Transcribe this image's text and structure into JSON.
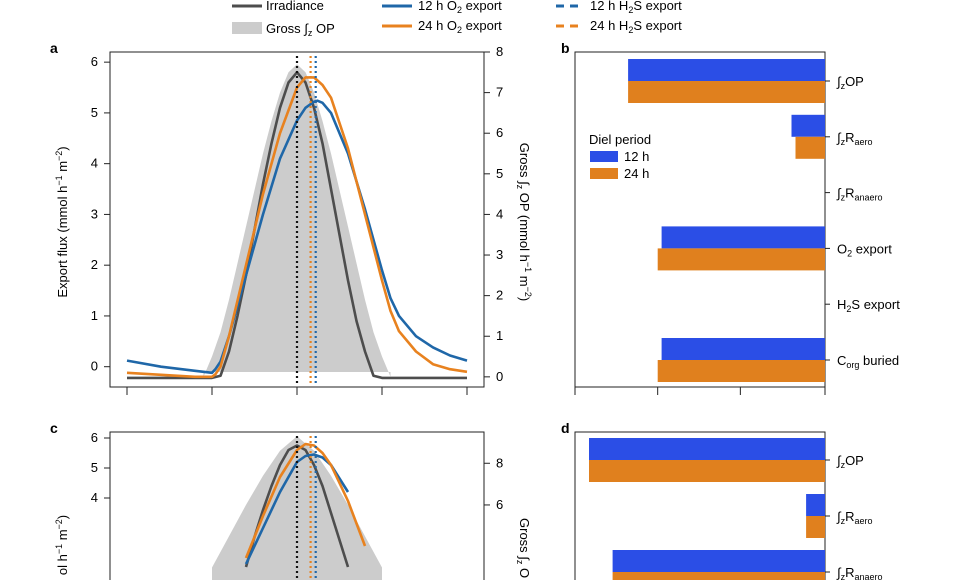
{
  "legend": {
    "irradiance": "Irradiance",
    "gross_op": [
      "Gross ",
      "∫",
      "z",
      " OP"
    ],
    "o2_12": [
      "12 h O",
      "2",
      " export"
    ],
    "o2_24": [
      "24 h O",
      "2",
      " export"
    ],
    "h2s_12": [
      "12 h H",
      "2",
      "S export"
    ],
    "h2s_24": [
      "24 h H",
      "2",
      "S export"
    ]
  },
  "colors": {
    "c12": "#1f67a8",
    "c24": "#e8821f",
    "irradiance": "#4d4d4d",
    "gross_fill": "#cccccc",
    "bar12": "#2b4ee6",
    "bar24": "#e0801e"
  },
  "chart_data": [
    {
      "panel": "a",
      "type": "line",
      "ylabel_left": [
        "Export flux (mmol h",
        "−1",
        " m",
        "−2",
        ")"
      ],
      "ylabel_right": [
        "Gross ",
        "∫",
        "z",
        " OP (mmol h",
        "−1",
        " m",
        "−2",
        ")"
      ],
      "ylim_left": [
        -0.4,
        6.2
      ],
      "yticks_left": [
        0,
        1,
        2,
        3,
        4,
        5,
        6
      ],
      "ylim_right": [
        -0.25,
        8.0
      ],
      "yticks_right": [
        0,
        1,
        2,
        3,
        4,
        5,
        6,
        7,
        8
      ],
      "xlim": [
        -11,
        11
      ],
      "xticks": [
        -10,
        -5,
        0,
        5,
        10
      ],
      "xtick_labels": "not visible",
      "series": [
        {
          "key": "irradiance",
          "x": [
            -10,
            -6,
            -5,
            -4.5,
            -4,
            -3.5,
            -3,
            -2.5,
            -2,
            -1.5,
            -1,
            -0.5,
            0,
            0.5,
            1,
            1.5,
            2,
            2.5,
            3,
            3.5,
            4,
            4.5,
            5,
            6,
            10
          ],
          "y": [
            -0.22,
            -0.22,
            -0.22,
            -0.18,
            0.3,
            1.0,
            1.8,
            2.7,
            3.6,
            4.4,
            5.1,
            5.6,
            5.8,
            5.6,
            5.1,
            4.4,
            3.5,
            2.6,
            1.7,
            0.9,
            0.3,
            -0.18,
            -0.22,
            -0.22,
            -0.22
          ]
        },
        {
          "key": "o2_12",
          "x": [
            -10,
            -8,
            -6,
            -5,
            -4.8,
            -4.5,
            -4,
            -3,
            -2,
            -1,
            0,
            0.5,
            1,
            1.2,
            1.5,
            2,
            3,
            4,
            5,
            5.5,
            6,
            7,
            8,
            9,
            10
          ],
          "y": [
            0.12,
            0.0,
            -0.08,
            -0.12,
            -0.05,
            0.1,
            0.6,
            1.8,
            3.0,
            4.1,
            4.85,
            5.1,
            5.22,
            5.24,
            5.2,
            5.0,
            4.2,
            3.1,
            1.9,
            1.35,
            1.0,
            0.6,
            0.38,
            0.22,
            0.12
          ]
        },
        {
          "key": "o2_24",
          "x": [
            -10,
            -8,
            -6,
            -5,
            -4.8,
            -4.5,
            -4,
            -3,
            -2,
            -1,
            0,
            0.5,
            1,
            1.5,
            2,
            3,
            4,
            5,
            5.5,
            6,
            7,
            8,
            9,
            10
          ],
          "y": [
            -0.12,
            -0.16,
            -0.2,
            -0.2,
            -0.15,
            0.0,
            0.6,
            2.0,
            3.4,
            4.6,
            5.5,
            5.7,
            5.7,
            5.55,
            5.3,
            4.3,
            3.0,
            1.7,
            1.1,
            0.7,
            0.3,
            0.05,
            -0.05,
            -0.1
          ]
        },
        {
          "key": "gross_op",
          "axis": "right",
          "x": [
            -5.5,
            -5,
            -4.5,
            -4,
            -3.5,
            -3,
            -2.5,
            -2,
            -1.5,
            -1,
            -0.5,
            0,
            0.5,
            1,
            1.5,
            2,
            2.5,
            3,
            3.5,
            4,
            4.5,
            5,
            5.5
          ],
          "y": [
            0,
            0.5,
            1.1,
            1.9,
            2.8,
            3.7,
            4.6,
            5.5,
            6.3,
            7.0,
            7.5,
            7.7,
            7.5,
            7.0,
            6.3,
            5.5,
            4.6,
            3.7,
            2.8,
            1.9,
            1.1,
            0.5,
            0
          ]
        }
      ],
      "vlines": [
        {
          "key": "irradiance",
          "x": 0.0
        },
        {
          "key": "h2s_24",
          "x": 0.8
        },
        {
          "key": "h2s_12",
          "x": 1.1
        }
      ]
    },
    {
      "panel": "b",
      "type": "bar",
      "orientation": "horizontal",
      "legend_title": "Diel period",
      "legend_entries": [
        "12 h",
        "24 h"
      ],
      "categories": [
        [
          "∫",
          "z",
          "OP"
        ],
        [
          "∫",
          "z",
          "R",
          "aero"
        ],
        [
          "∫",
          "z",
          "R",
          "anaero"
        ],
        [
          "O",
          "2",
          " export"
        ],
        [
          "H",
          "2",
          "S export"
        ],
        [
          "C",
          "org",
          " buried"
        ]
      ],
      "series": [
        {
          "name": "12 h",
          "values": [
            -1.0,
            -0.17,
            0,
            -0.83,
            0,
            -0.83
          ]
        },
        {
          "name": "24 h",
          "values": [
            -1.0,
            -0.15,
            0,
            -0.85,
            0,
            -0.85
          ]
        }
      ],
      "xlim": [
        -1.27,
        0
      ],
      "xticks": [
        -1.27,
        -0.85,
        -0.43,
        0
      ]
    },
    {
      "panel": "c",
      "type": "line",
      "ylabel_left_visible": [
        "ol h",
        "−1",
        " m",
        "−2",
        ")"
      ],
      "ylabel_right_visible": [
        "Gross ",
        "∫",
        "z",
        " O"
      ],
      "ylim_left": [
        -0.4,
        6.2
      ],
      "yticks_left": [
        4,
        5,
        6
      ],
      "ylim_right": [
        0,
        9.5
      ],
      "yticks_right": [
        6,
        8
      ],
      "xlim": [
        -11,
        11
      ],
      "series": [
        {
          "key": "irradiance",
          "x": [
            -3,
            -2.5,
            -2,
            -1.5,
            -1,
            -0.5,
            0,
            0.5,
            1,
            1.5,
            2,
            2.5,
            3
          ],
          "y": [
            1.7,
            2.7,
            3.6,
            4.4,
            5.1,
            5.6,
            5.75,
            5.6,
            5.1,
            4.4,
            3.5,
            2.6,
            1.7
          ]
        },
        {
          "key": "o2_12",
          "x": [
            -3,
            -2,
            -1,
            0,
            0.5,
            1,
            1.5,
            2,
            3
          ],
          "y": [
            1.8,
            3.0,
            4.2,
            5.2,
            5.4,
            5.45,
            5.35,
            5.1,
            4.2
          ]
        },
        {
          "key": "o2_24",
          "x": [
            -3,
            -2,
            -1,
            0,
            0.5,
            1,
            1.5,
            2,
            3,
            4
          ],
          "y": [
            2.0,
            3.4,
            4.7,
            5.6,
            5.8,
            5.75,
            5.5,
            5.1,
            3.9,
            2.4
          ]
        },
        {
          "key": "gross_op",
          "axis": "right",
          "x": [
            -5,
            -4,
            -3,
            -2,
            -1,
            0,
            1,
            2,
            3,
            4,
            5
          ],
          "y": [
            3.0,
            4.5,
            6.0,
            7.4,
            8.6,
            9.3,
            8.6,
            7.4,
            6.0,
            4.5,
            3.0
          ]
        }
      ],
      "vlines": [
        {
          "key": "irradiance",
          "x": 0.0
        },
        {
          "key": "h2s_24",
          "x": 0.8
        },
        {
          "key": "h2s_12",
          "x": 1.1
        }
      ]
    },
    {
      "panel": "d",
      "type": "bar",
      "orientation": "horizontal",
      "categories": [
        [
          "∫",
          "z",
          "OP"
        ],
        [
          "∫",
          "z",
          "R",
          "aero"
        ],
        [
          "∫",
          "z",
          "R",
          "anaero"
        ]
      ],
      "series": [
        {
          "name": "12 h",
          "values": [
            -1.0,
            -0.08,
            -0.9
          ]
        },
        {
          "name": "24 h",
          "values": [
            -1.0,
            -0.08,
            -0.9
          ]
        }
      ],
      "xlim": [
        -1.0,
        0
      ]
    }
  ]
}
